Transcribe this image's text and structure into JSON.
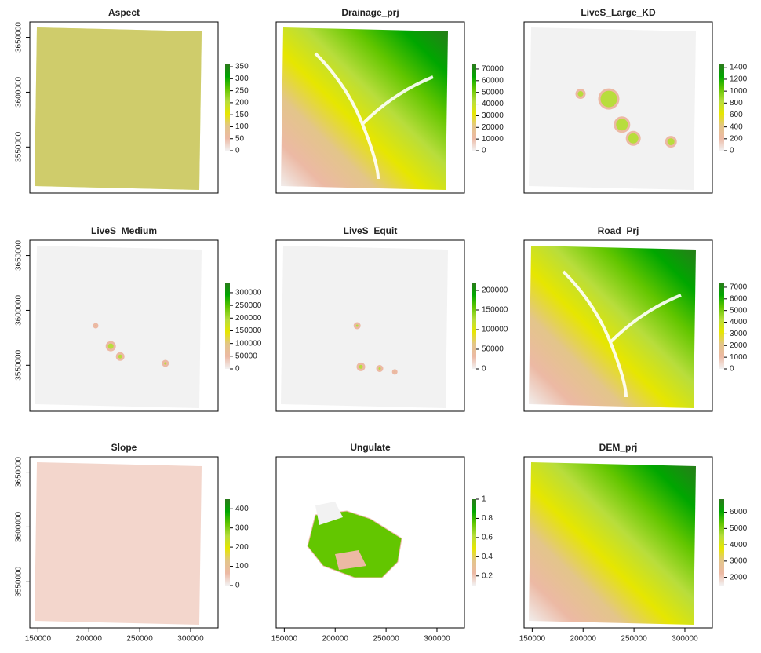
{
  "palette": [
    "#f2f2f2",
    "#ecb9a4",
    "#e3c58a",
    "#e6e600",
    "#b8dd3c",
    "#63c600",
    "#00a600",
    "#2b7a1c"
  ],
  "chart_data": [
    {
      "type": "raster",
      "title": "Aspect",
      "xlim": [
        142000,
        327000
      ],
      "ylim": [
        3508000,
        3664000
      ],
      "yticks": [
        3550000,
        3600000,
        3650000
      ],
      "zlim": [
        0,
        360
      ],
      "zticks": [
        0,
        50,
        100,
        150,
        200,
        250,
        300,
        350
      ]
    },
    {
      "type": "raster",
      "title": "Drainage_prj",
      "xlim": [
        142000,
        327000
      ],
      "ylim": [
        3508000,
        3664000
      ],
      "zlim": [
        0,
        74000
      ],
      "zticks": [
        0,
        10000,
        20000,
        30000,
        40000,
        50000,
        60000,
        70000
      ]
    },
    {
      "type": "raster",
      "title": "LiveS_Large_KD",
      "xlim": [
        142000,
        327000
      ],
      "ylim": [
        3508000,
        3664000
      ],
      "zlim": [
        0,
        1450
      ],
      "zticks": [
        0,
        200,
        400,
        600,
        800,
        1000,
        1200,
        1400
      ]
    },
    {
      "type": "raster",
      "title": "LiveS_Medium",
      "xlim": [
        142000,
        327000
      ],
      "ylim": [
        3508000,
        3664000
      ],
      "yticks": [
        3550000,
        3600000,
        3650000
      ],
      "zlim": [
        0,
        340000
      ],
      "zticks": [
        0,
        50000,
        100000,
        150000,
        200000,
        250000,
        300000
      ]
    },
    {
      "type": "raster",
      "title": "LiveS_Equit",
      "xlim": [
        142000,
        327000
      ],
      "ylim": [
        3508000,
        3664000
      ],
      "zlim": [
        0,
        220000
      ],
      "zticks": [
        0,
        50000,
        100000,
        150000,
        200000
      ]
    },
    {
      "type": "raster",
      "title": "Road_Prj",
      "xlim": [
        142000,
        327000
      ],
      "ylim": [
        3508000,
        3664000
      ],
      "zlim": [
        0,
        7400
      ],
      "zticks": [
        0,
        1000,
        2000,
        3000,
        4000,
        5000,
        6000,
        7000
      ]
    },
    {
      "type": "raster",
      "title": "Slope",
      "xlim": [
        142000,
        327000
      ],
      "ylim": [
        3508000,
        3664000
      ],
      "xticks": [
        150000,
        200000,
        250000,
        300000
      ],
      "yticks": [
        3550000,
        3600000,
        3650000
      ],
      "zlim": [
        0,
        450
      ],
      "zticks": [
        0,
        100,
        200,
        300,
        400
      ]
    },
    {
      "type": "raster",
      "title": "Ungulate",
      "xlim": [
        142000,
        327000
      ],
      "ylim": [
        3508000,
        3664000
      ],
      "xticks": [
        150000,
        200000,
        250000,
        300000
      ],
      "zlim": [
        0.1,
        1.0
      ],
      "zticks": [
        0.2,
        0.4,
        0.6,
        0.8,
        1.0
      ]
    },
    {
      "type": "raster",
      "title": "DEM_prj",
      "xlim": [
        142000,
        327000
      ],
      "ylim": [
        3508000,
        3664000
      ],
      "xticks": [
        150000,
        200000,
        250000,
        300000
      ],
      "zlim": [
        1500,
        6800
      ],
      "zticks": [
        2000,
        3000,
        4000,
        5000,
        6000
      ]
    }
  ]
}
